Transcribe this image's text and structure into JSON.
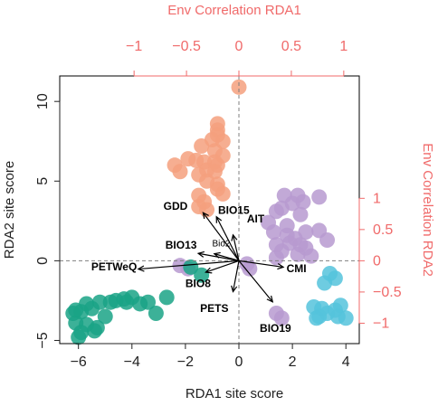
{
  "colors": {
    "env_axis": "#f06a6a",
    "site_axis": "#222222",
    "cluster_salmon": "#f4a07e",
    "cluster_purple": "#b79ad0",
    "cluster_teal": "#1aa386",
    "cluster_blue": "#55c3dc",
    "arrow": "#000000",
    "zero_line": "#7f7f7f"
  },
  "chart_data": {
    "type": "scatter",
    "title": "",
    "xlabel": "RDA1 site score",
    "ylabel": "RDA2 site score",
    "top_label": "Env Correlation RDA1",
    "right_label": "Env Correlation RDA2",
    "xlim": [
      -6.7,
      4.5
    ],
    "ylim": [
      -5.2,
      11.6
    ],
    "x_ticks": [
      -6,
      -4,
      -2,
      0,
      2,
      4
    ],
    "x_tick_labels": [
      "−6",
      "−4",
      "−2",
      "0",
      "2",
      "4"
    ],
    "y_ticks": [
      -5,
      0,
      5,
      10
    ],
    "y_tick_labels": [
      "−5",
      "0",
      "5",
      "10"
    ],
    "top_ticks": [
      -1,
      -0.5,
      0,
      0.5,
      1
    ],
    "top_tick_labels": [
      "−1",
      "−0.5",
      "0",
      "0.5",
      "1"
    ],
    "right_ticks": [
      1,
      0.5,
      0,
      -0.5,
      -1
    ],
    "right_tick_labels": [
      "1",
      "0.5",
      "0",
      "−0.5",
      "−1"
    ],
    "env_scale": 3.92,
    "series": [
      {
        "color_key": "cluster_salmon",
        "points": [
          [
            0,
            10.9
          ],
          [
            -0.8,
            8.6
          ],
          [
            -0.8,
            8.2
          ],
          [
            -0.8,
            7.9
          ],
          [
            -1.0,
            7.6
          ],
          [
            -0.6,
            7.5
          ],
          [
            -1.4,
            7.2
          ],
          [
            -0.9,
            6.9
          ],
          [
            -0.6,
            6.6
          ],
          [
            -1.9,
            6.4
          ],
          [
            -1.6,
            6.3
          ],
          [
            -0.9,
            6.2
          ],
          [
            -1.3,
            6.2
          ],
          [
            -2.4,
            6.0
          ],
          [
            -0.8,
            6.0
          ],
          [
            -1.2,
            5.7
          ],
          [
            -2.2,
            5.6
          ],
          [
            -0.9,
            5.6
          ],
          [
            -1.5,
            5.4
          ],
          [
            -1.2,
            5.0
          ],
          [
            -0.8,
            4.8
          ],
          [
            -0.8,
            4.5
          ],
          [
            -0.6,
            4.2
          ],
          [
            -1.5,
            4.1
          ],
          [
            -1.3,
            3.7
          ],
          [
            -1.5,
            3.4
          ],
          [
            -1.2,
            3.2
          ]
        ]
      },
      {
        "color_key": "cluster_purple",
        "points": [
          [
            1.7,
            4.1
          ],
          [
            2.2,
            4.1
          ],
          [
            3.0,
            4.0
          ],
          [
            2.4,
            3.7
          ],
          [
            2.0,
            3.6
          ],
          [
            1.6,
            3.3
          ],
          [
            1.4,
            3.1
          ],
          [
            2.3,
            2.9
          ],
          [
            1.1,
            2.4
          ],
          [
            1.8,
            2.2
          ],
          [
            3.0,
            1.9
          ],
          [
            2.5,
            1.8
          ],
          [
            1.3,
            1.8
          ],
          [
            1.8,
            1.6
          ],
          [
            2.1,
            1.4
          ],
          [
            3.3,
            1.3
          ],
          [
            1.9,
            1.1
          ],
          [
            2.3,
            1.0
          ],
          [
            1.4,
            1.0
          ],
          [
            2.5,
            0.8
          ],
          [
            1.6,
            0.6
          ],
          [
            2.2,
            0.4
          ],
          [
            2.7,
            0.3
          ],
          [
            1.4,
            0.2
          ],
          [
            0.3,
            -0.2
          ],
          [
            -2.2,
            -0.3
          ],
          [
            -1.9,
            -0.5
          ],
          [
            0.4,
            -0.5
          ],
          [
            1.4,
            -3.3
          ],
          [
            1.6,
            -3.6
          ]
        ]
      },
      {
        "color_key": "cluster_blue",
        "points": [
          [
            3.4,
            -0.8
          ],
          [
            3.6,
            -1.1
          ],
          [
            3.2,
            -1.4
          ],
          [
            3.8,
            -2.8
          ],
          [
            2.8,
            -2.9
          ],
          [
            3.1,
            -3.0
          ],
          [
            3.6,
            -3.1
          ],
          [
            3.3,
            -3.3
          ],
          [
            3.7,
            -3.5
          ],
          [
            4.0,
            -3.6
          ],
          [
            3.0,
            -3.5
          ],
          [
            2.9,
            -3.6
          ]
        ]
      },
      {
        "color_key": "cluster_teal",
        "points": [
          [
            -1.8,
            -0.4
          ],
          [
            -1.4,
            -0.9
          ],
          [
            -2.7,
            -2.3
          ],
          [
            -4.0,
            -2.3
          ],
          [
            -4.3,
            -2.4
          ],
          [
            -4.6,
            -2.5
          ],
          [
            -3.4,
            -2.6
          ],
          [
            -4.2,
            -2.6
          ],
          [
            -4.8,
            -2.6
          ],
          [
            -5.2,
            -2.6
          ],
          [
            -3.7,
            -2.7
          ],
          [
            -5.7,
            -2.7
          ],
          [
            -5.5,
            -3.0
          ],
          [
            -6.1,
            -3.1
          ],
          [
            -5.9,
            -3.2
          ],
          [
            -6.2,
            -3.3
          ],
          [
            -3.1,
            -3.3
          ],
          [
            -5.0,
            -3.5
          ],
          [
            -6.1,
            -3.9
          ],
          [
            -5.7,
            -4.0
          ],
          [
            -5.3,
            -4.2
          ],
          [
            -5.4,
            -4.4
          ],
          [
            -5.9,
            -4.5
          ],
          [
            -6.0,
            -4.8
          ]
        ]
      }
    ],
    "arrows": [
      {
        "label": "GDD",
        "x": -1.34,
        "y": 3.02,
        "lx": -2.82,
        "ly": 3.2,
        "small": false
      },
      {
        "label": "BIO15",
        "x": -0.84,
        "y": 2.76,
        "lx": -0.78,
        "ly": 2.95,
        "small": false
      },
      {
        "label": "AIT",
        "x": -0.22,
        "y": 1.62,
        "lx": 0.3,
        "ly": 2.4,
        "small": false
      },
      {
        "label": "Bio2",
        "x": -0.92,
        "y": 0.44,
        "lx": -1.0,
        "ly": 0.9,
        "small": true
      },
      {
        "label": "BIO13",
        "x": -1.52,
        "y": 0.46,
        "lx": -2.75,
        "ly": 0.75,
        "small": false
      },
      {
        "label": "PETWeQ",
        "x": -3.76,
        "y": -0.52,
        "lx": -5.52,
        "ly": -0.6,
        "small": false
      },
      {
        "label": "BIO8",
        "x": -1.24,
        "y": -0.72,
        "lx": -2.0,
        "ly": -1.65,
        "small": false
      },
      {
        "label": "CMI",
        "x": 1.66,
        "y": -0.4,
        "lx": 1.78,
        "ly": -0.72,
        "small": false
      },
      {
        "label": "PETS",
        "x": -0.22,
        "y": -1.94,
        "lx": -1.45,
        "ly": -3.2,
        "small": false
      },
      {
        "label": "BIO19",
        "x": 1.26,
        "y": -2.58,
        "lx": 0.78,
        "ly": -4.45,
        "small": false
      }
    ]
  }
}
